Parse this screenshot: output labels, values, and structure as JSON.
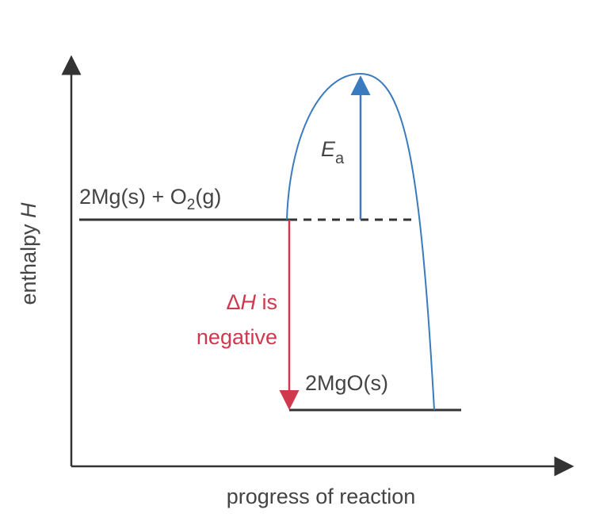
{
  "axes": {
    "y_label": {
      "text": "enthalpy ",
      "variable": "H"
    },
    "x_label": "progress of reaction"
  },
  "levels": {
    "reactants": {
      "before_subscript": "2Mg(s) + O",
      "subscript": "2",
      "after_subscript": "(g)"
    },
    "products": "2MgO(s)"
  },
  "activation_energy": {
    "symbol": "E",
    "subscript": "a"
  },
  "enthalpy_change": {
    "symbol": "Δ",
    "variable": "H",
    "rest": " is",
    "line2": "negative"
  }
}
